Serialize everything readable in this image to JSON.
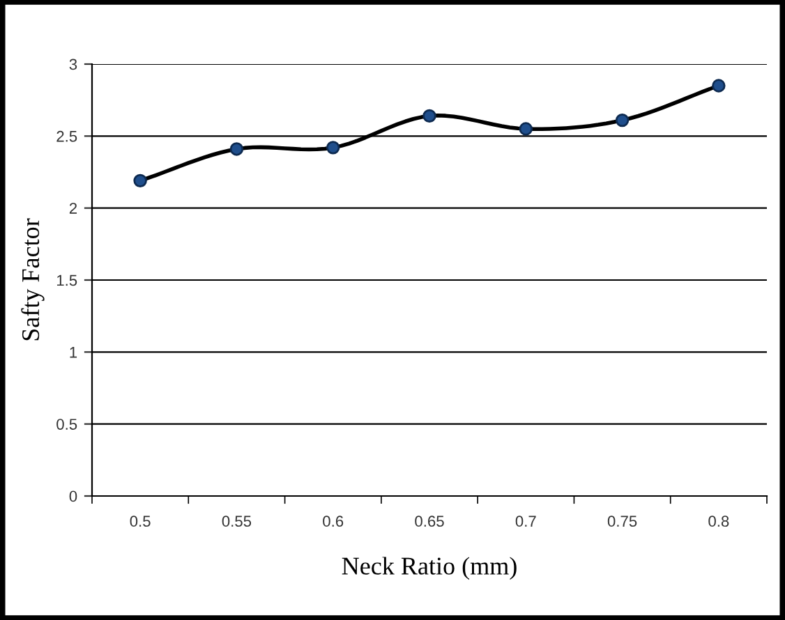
{
  "chart_data": {
    "type": "line",
    "xlabel": "Neck Ratio (mm)",
    "ylabel": "Safty Factor",
    "categories": [
      "0.5",
      "0.55",
      "0.6",
      "0.65",
      "0.7",
      "0.75",
      "0.8"
    ],
    "series": [
      {
        "color": "#1f4e8c",
        "values": [
          2.19,
          2.41,
          2.42,
          2.64,
          2.55,
          2.61,
          2.85
        ]
      }
    ],
    "ylim": [
      0,
      3
    ],
    "yticks": [
      0,
      0.5,
      1,
      1.5,
      2,
      2.5,
      3
    ],
    "grid": "y",
    "marker": "circle",
    "line_style": "solid"
  }
}
